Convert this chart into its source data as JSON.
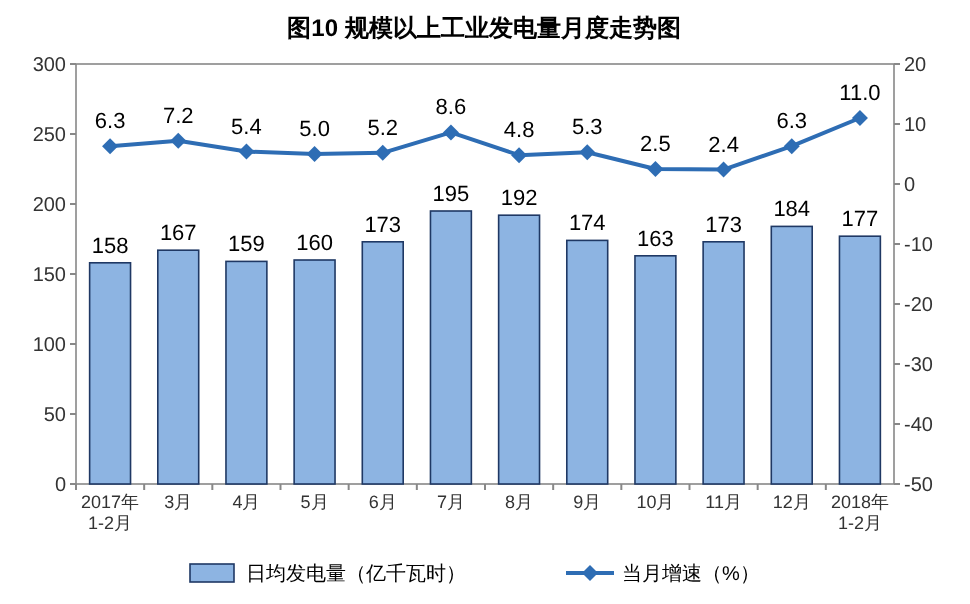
{
  "chart_data": {
    "type": "bar",
    "title": "图10 规模以上工业发电量月度走势图",
    "categories": [
      "2017年\n1-2月",
      "3月",
      "4月",
      "5月",
      "6月",
      "7月",
      "8月",
      "9月",
      "10月",
      "11月",
      "12月",
      "2018年\n1-2月"
    ],
    "series": [
      {
        "name": "日均发电量（亿千瓦时）",
        "color": "#8db4e2",
        "values": [
          158,
          167,
          159,
          160,
          173,
          195,
          192,
          174,
          163,
          173,
          184,
          177
        ]
      },
      {
        "name": "当月增速（%）",
        "type": "line",
        "axis": "y2",
        "color": "#2e6db4",
        "marker": "diamond",
        "values": [
          6.3,
          7.2,
          5.4,
          5.0,
          5.2,
          8.6,
          4.8,
          5.3,
          2.5,
          2.4,
          6.3,
          11.0
        ],
        "value_labels": [
          "6.3",
          "7.2",
          "5.4",
          "5.0",
          "5.2",
          "8.6",
          "4.8",
          "5.3",
          "2.5",
          "2.4",
          "6.3",
          "11.0"
        ]
      }
    ],
    "ylim": [
      0,
      300
    ],
    "yticks": [
      0,
      50,
      100,
      150,
      200,
      250,
      300
    ],
    "y2lim": [
      -50,
      20
    ],
    "y2ticks": [
      -50,
      -40,
      -30,
      -20,
      -10,
      0,
      10,
      20
    ],
    "data_labels": true,
    "legend": "bottom"
  }
}
